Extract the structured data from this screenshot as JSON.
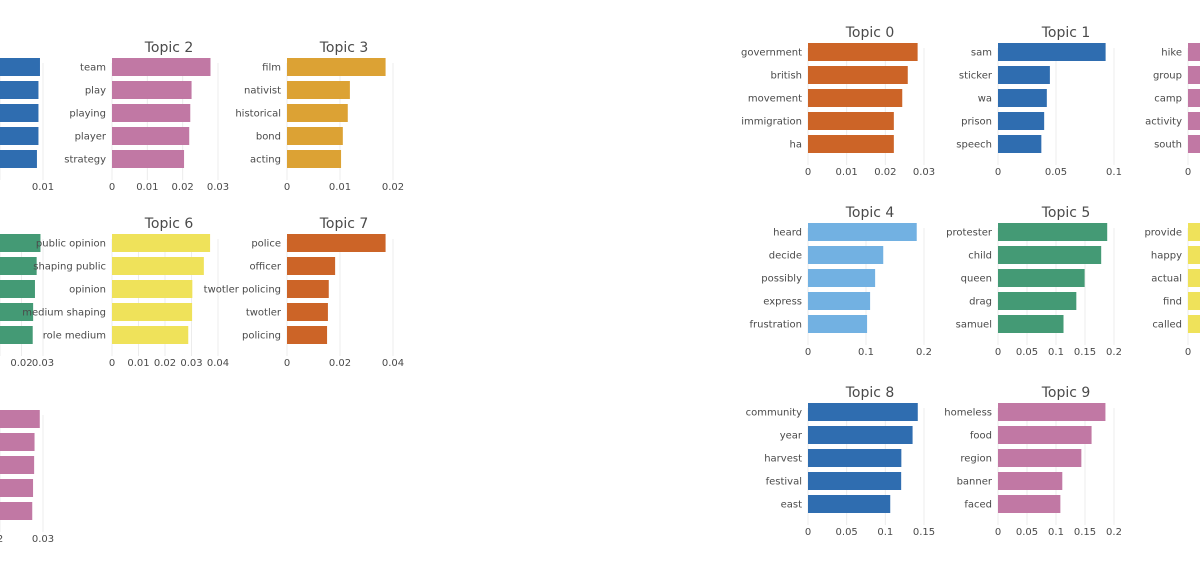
{
  "chart_data": [
    {
      "type": "bar",
      "title": "Topic 1",
      "categories": [
        null,
        null,
        null,
        null,
        null
      ],
      "values": [
        0.0132,
        0.0127,
        0.0127,
        0.0127,
        0.0122
      ],
      "xticks": [
        "",
        "0.01"
      ],
      "xlim": [
        0,
        0.0142
      ],
      "color": "#2f6db0"
    },
    {
      "type": "bar",
      "title": "Topic 2",
      "categories": [
        "team",
        "play",
        "playing",
        "player",
        "strategy"
      ],
      "values": [
        0.038,
        0.0307,
        0.0302,
        0.0298,
        0.0278
      ],
      "xticks": [
        "0",
        "0.01",
        "0.02",
        "0.03"
      ],
      "xlim": [
        0,
        0.0409
      ],
      "color": "#c178a4"
    },
    {
      "type": "bar",
      "title": "Topic 3",
      "categories": [
        "film",
        "nativist",
        "historical",
        "bond",
        "acting"
      ],
      "values": [
        0.0279,
        0.0178,
        0.0172,
        0.0158,
        0.0153
      ],
      "xticks": [
        "0",
        "0.01",
        "0.02"
      ],
      "xlim": [
        0,
        0.03
      ],
      "color": "#dca234"
    },
    {
      "type": "bar",
      "title": "Topic 5",
      "categories": [
        "public opinion",
        "shaping public",
        "opinion",
        "medium shaping",
        "role medium"
      ],
      "values": [
        0.0287,
        0.026,
        0.0248,
        0.0235,
        0.0232
      ],
      "xticks": [
        "",
        "0.02",
        "0.03"
      ],
      "xlim": [
        0,
        0.0305
      ],
      "color": "#449a75"
    },
    {
      "type": "bar",
      "title": "Topic 6",
      "categories": [
        "public opinion",
        "shaping public",
        "opinion",
        "medium shaping",
        "role medium"
      ],
      "values": [
        0.0409,
        0.0383,
        0.0335,
        0.0334,
        0.0318
      ],
      "xticks": [
        "0",
        "0.01",
        "0.02",
        "0.03",
        "0.04"
      ],
      "xlim": [
        0,
        0.0442
      ],
      "color": "#efe25a"
    },
    {
      "type": "bar",
      "title": "Topic 7",
      "categories": [
        "police",
        "officer",
        "twotler policing",
        "twotler",
        "policing"
      ],
      "values": [
        0.0465,
        0.0227,
        0.0197,
        0.0193,
        0.0189
      ],
      "xticks": [
        "0",
        "0.02",
        "0.04"
      ],
      "xlim": [
        0,
        0.05
      ],
      "color": "#cc6427"
    },
    {
      "type": "bar",
      "title": "Topic 9",
      "categories": [
        null,
        null,
        null,
        null,
        null
      ],
      "values": [
        0.0296,
        0.0257,
        0.0254,
        0.0246,
        0.024
      ],
      "xticks": [
        "2",
        "0.03"
      ],
      "xlim": [
        0,
        0.032
      ],
      "color": "#c178a4"
    },
    {
      "type": "bar",
      "title": "Topic 0",
      "categories": [
        "government",
        "british",
        "movement",
        "immigration",
        "ha"
      ],
      "values": [
        0.0378,
        0.0344,
        0.0325,
        0.0296,
        0.0296
      ],
      "xticks": [
        "0",
        "0.01",
        "0.02",
        "0.03"
      ],
      "xlim": [
        0,
        0.04
      ],
      "color": "#cc6427"
    },
    {
      "type": "bar",
      "title": "Topic 1",
      "categories": [
        "sam",
        "sticker",
        "wa",
        "prison",
        "speech"
      ],
      "values": [
        0.1373,
        0.0662,
        0.0623,
        0.0589,
        0.0553
      ],
      "xticks": [
        "0",
        "0.05",
        "0.1"
      ],
      "xlim": [
        0,
        0.148
      ],
      "color": "#2f6db0"
    },
    {
      "type": "bar",
      "title": "",
      "categories": [
        "hike",
        "group",
        "camp",
        "activity",
        "south"
      ],
      "values": [
        0.03,
        0.03,
        0.03,
        0.03,
        0.03
      ],
      "xticks": [
        "0"
      ],
      "xlim": [
        0,
        0.03
      ],
      "color": "#c178a4"
    },
    {
      "type": "bar",
      "title": "Topic 4",
      "categories": [
        "heard",
        "decide",
        "possibly",
        "express",
        "frustration"
      ],
      "values": [
        0.2812,
        0.1946,
        0.1736,
        0.1606,
        0.1528
      ],
      "xticks": [
        "0",
        "0.1",
        "0.2"
      ],
      "xlim": [
        0,
        0.3
      ],
      "color": "#72b1e2"
    },
    {
      "type": "bar",
      "title": "Topic 5",
      "categories": [
        "protester",
        "child",
        "queen",
        "drag",
        "samuel"
      ],
      "values": [
        0.1977,
        0.1868,
        0.1568,
        0.1418,
        0.1186
      ],
      "xticks": [
        "0",
        "0.05",
        "0.1",
        "0.15",
        "0.2"
      ],
      "xlim": [
        0,
        0.21
      ],
      "color": "#449a75"
    },
    {
      "type": "bar",
      "title": "",
      "categories": [
        "provide",
        "happy",
        "actual",
        "find",
        "called"
      ],
      "values": [
        0.03,
        0.03,
        0.03,
        0.03,
        0.03
      ],
      "xticks": [
        "0"
      ],
      "xlim": [
        0,
        0.03
      ],
      "color": "#efe25a"
    },
    {
      "type": "bar",
      "title": "Topic 8",
      "categories": [
        "community",
        "year",
        "harvest",
        "festival",
        "east"
      ],
      "values": [
        0.1798,
        0.1713,
        0.1529,
        0.1526,
        0.1347
      ],
      "xticks": [
        "0",
        "0.05",
        "0.1",
        "0.15"
      ],
      "xlim": [
        0,
        0.19
      ],
      "color": "#2f6db0"
    },
    {
      "type": "bar",
      "title": "Topic 9",
      "categories": [
        "homeless",
        "food",
        "region",
        "banner",
        "faced"
      ],
      "values": [
        0.1945,
        0.1694,
        0.1509,
        0.1164,
        0.1129
      ],
      "xticks": [
        "0",
        "0.05",
        "0.1",
        "0.15",
        "0.2"
      ],
      "xlim": [
        0,
        0.21
      ],
      "color": "#c178a4"
    }
  ]
}
